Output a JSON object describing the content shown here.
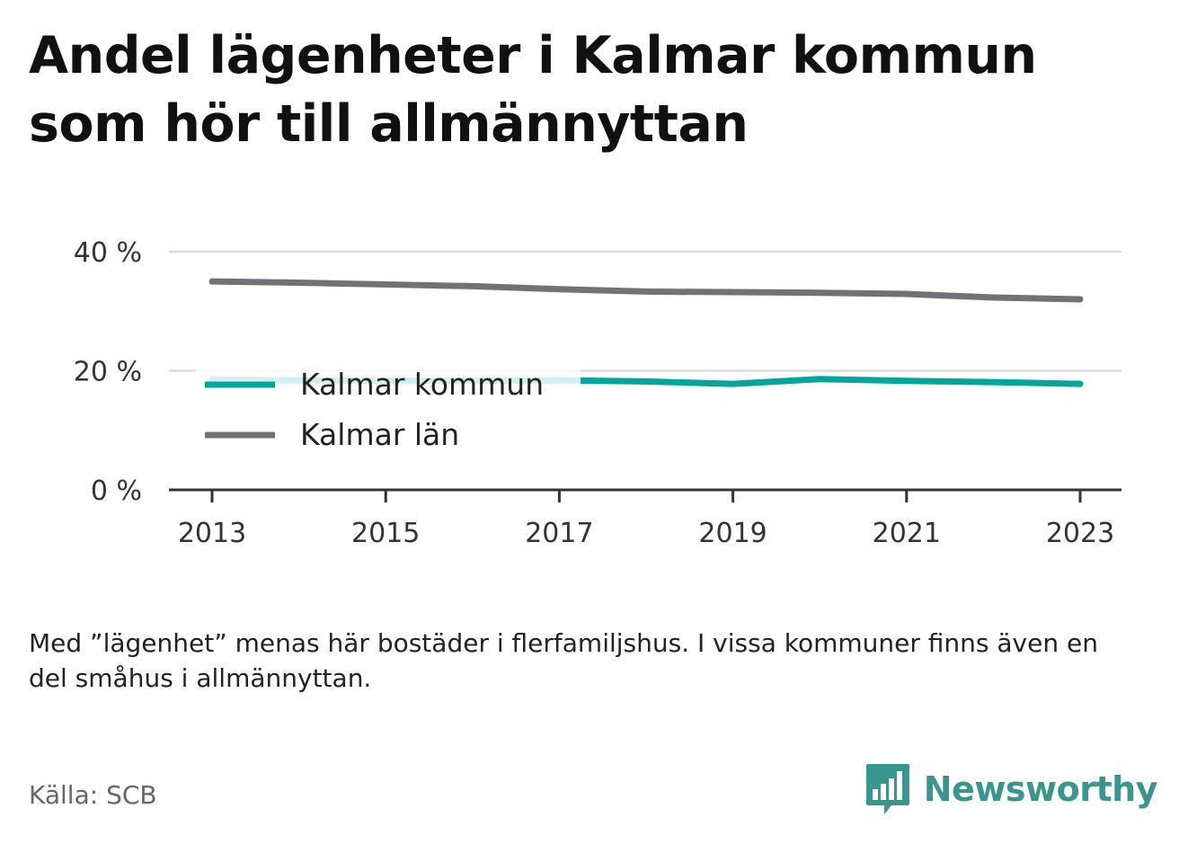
{
  "title": "Andel lägenheter i Kalmar kommun som hör till allmännyttan",
  "note": "Med ”lägenhet” menas här bostäder i flerfamiljshus. I vissa kommuner finns även en del småhus i allmännyttan.",
  "source": "Källa: SCB",
  "brand": {
    "name": "Newsworthy",
    "icon": "bar-chart-speech-bubble-icon",
    "color": "#3a958e"
  },
  "colors": {
    "kommun": "#00a69c",
    "lan": "#727276",
    "grid": "#dddddd",
    "axis": "#333333"
  },
  "chart_data": {
    "type": "line",
    "x": [
      2013,
      2014,
      2015,
      2016,
      2017,
      2018,
      2019,
      2020,
      2021,
      2022,
      2023
    ],
    "series": [
      {
        "name": "Kalmar kommun",
        "values": [
          18.5,
          18.4,
          18.3,
          18.3,
          18.4,
          18.2,
          17.8,
          18.6,
          18.3,
          18.1,
          17.8
        ]
      },
      {
        "name": "Kalmar län",
        "values": [
          35.0,
          34.8,
          34.5,
          34.2,
          33.7,
          33.3,
          33.2,
          33.1,
          32.9,
          32.3,
          32.0
        ]
      }
    ],
    "xticks": [
      "2013",
      "2015",
      "2017",
      "2019",
      "2021",
      "2023"
    ],
    "yticks": [
      "0 %",
      "20 %",
      "40 %"
    ],
    "ytick_values": [
      0,
      20,
      40
    ],
    "ylim": [
      0,
      40
    ],
    "xlim": [
      2013,
      2023
    ],
    "grid": true,
    "legend": "inside-left"
  }
}
